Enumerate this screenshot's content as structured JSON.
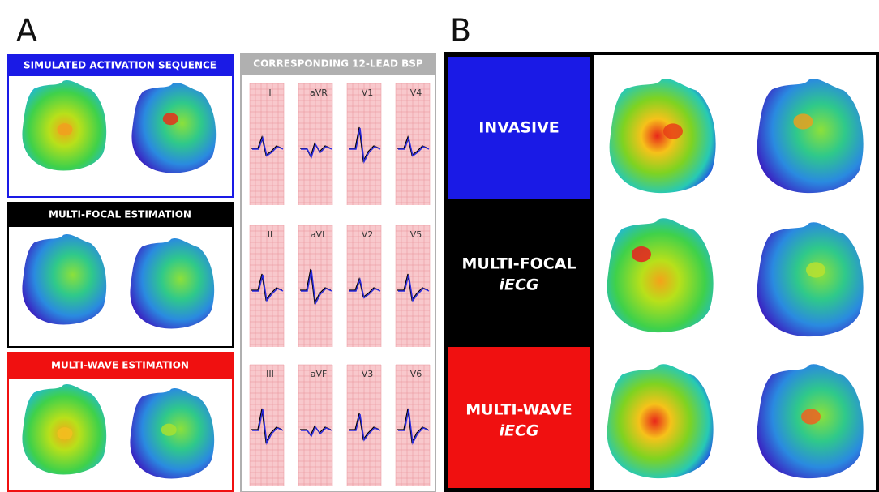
{
  "panel_a": {
    "label": "A",
    "sections": [
      {
        "title": "SIMULATED ACTIVATION SEQUENCE"
      },
      {
        "title": "MULTI-FOCAL ESTIMATION"
      },
      {
        "title": "MULTI-WAVE ESTIMATION"
      }
    ],
    "bsp": {
      "title": "CORRESPONDING 12-LEAD BSP",
      "leads": [
        "I",
        "aVR",
        "V1",
        "V4",
        "II",
        "aVL",
        "V2",
        "V5",
        "III",
        "aVF",
        "V3",
        "V6"
      ]
    }
  },
  "panel_b": {
    "label": "B",
    "rows": [
      {
        "title": "INVASIVE"
      },
      {
        "title": "MULTI-FOCAL",
        "subtitle": "iECG"
      },
      {
        "title": "MULTI-WAVE",
        "subtitle": "iECG"
      }
    ]
  }
}
